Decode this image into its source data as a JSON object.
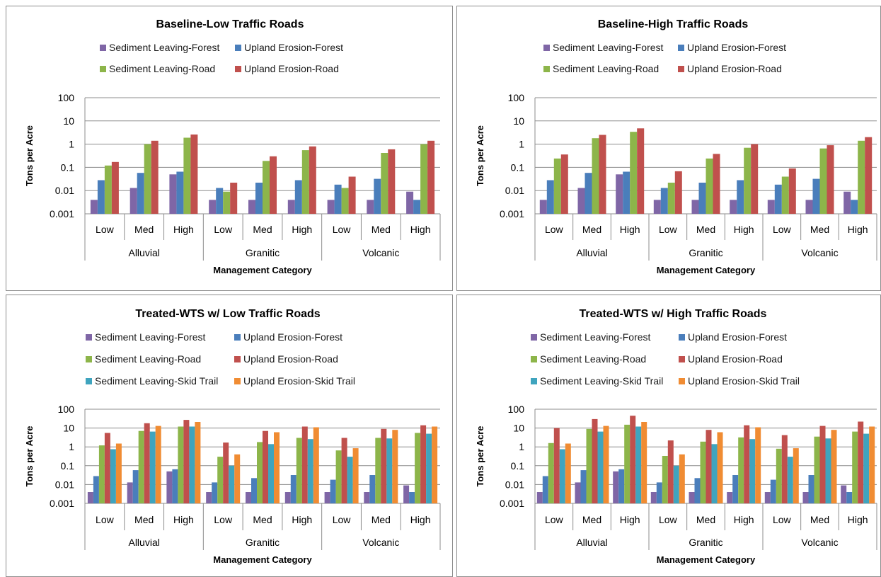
{
  "colors": {
    "Sediment Leaving-Forest": "#7f66a6",
    "Upland Erosion-Forest": "#4a7ebb",
    "Sediment Leaving-Road": "#8db54a",
    "Upland Erosion-Road": "#c0504d",
    "Sediment Leaving-Skid Trail": "#3fa4be",
    "Upland Erosion-Skid Trail": "#f08c33"
  },
  "chart_data": [
    {
      "type": "bar",
      "title": "Baseline-Low Traffic Roads",
      "xlabel": "Management Category",
      "ylabel": "Tons per Acre",
      "yscale": "log",
      "ylim": [
        0.001,
        100
      ],
      "yticks": [
        "100",
        "10",
        "1",
        "0.1",
        "0.01",
        "0.001"
      ],
      "groups": [
        "Alluvial",
        "Granitic",
        "Volcanic"
      ],
      "categories": [
        "Low",
        "Med",
        "High",
        "Low",
        "Med",
        "High",
        "Low",
        "Med",
        "High"
      ],
      "legend": "top",
      "series": [
        {
          "name": "Sediment Leaving-Forest",
          "values": [
            0.004,
            0.013,
            0.05,
            0.004,
            0.004,
            0.004,
            0.004,
            0.004,
            0.009
          ]
        },
        {
          "name": "Upland Erosion-Forest",
          "values": [
            0.028,
            0.058,
            0.065,
            0.013,
            0.022,
            0.028,
            0.018,
            0.032,
            0.004
          ]
        },
        {
          "name": "Sediment Leaving-Road",
          "values": [
            0.12,
            1.0,
            1.9,
            0.009,
            0.19,
            0.55,
            0.013,
            0.42,
            1.0
          ]
        },
        {
          "name": "Upland Erosion-Road",
          "values": [
            0.17,
            1.4,
            2.6,
            0.022,
            0.3,
            0.8,
            0.04,
            0.6,
            1.4
          ]
        }
      ]
    },
    {
      "type": "bar",
      "title": "Baseline-High Traffic Roads",
      "xlabel": "Management Category",
      "ylabel": "Tons per Acre",
      "yscale": "log",
      "ylim": [
        0.001,
        100
      ],
      "yticks": [
        "100",
        "10",
        "1",
        "0.1",
        "0.01",
        "0.001"
      ],
      "groups": [
        "Alluvial",
        "Granitic",
        "Volcanic"
      ],
      "categories": [
        "Low",
        "Med",
        "High",
        "Low",
        "Med",
        "High",
        "Low",
        "Med",
        "High"
      ],
      "legend": "top",
      "series": [
        {
          "name": "Sediment Leaving-Forest",
          "values": [
            0.004,
            0.013,
            0.05,
            0.004,
            0.004,
            0.004,
            0.004,
            0.004,
            0.009
          ]
        },
        {
          "name": "Upland Erosion-Forest",
          "values": [
            0.028,
            0.058,
            0.065,
            0.013,
            0.022,
            0.028,
            0.018,
            0.032,
            0.004
          ]
        },
        {
          "name": "Sediment Leaving-Road",
          "values": [
            0.24,
            1.8,
            3.4,
            0.022,
            0.24,
            0.7,
            0.04,
            0.65,
            1.4
          ]
        },
        {
          "name": "Upland Erosion-Road",
          "values": [
            0.36,
            2.5,
            4.8,
            0.068,
            0.38,
            1.0,
            0.09,
            0.9,
            2.0
          ]
        }
      ]
    },
    {
      "type": "bar",
      "title": "Treated-WTS w/ Low Traffic Roads",
      "xlabel": "Management Category",
      "ylabel": "Tons per Acre",
      "yscale": "log",
      "ylim": [
        0.001,
        100
      ],
      "yticks": [
        "100",
        "10",
        "1",
        "0.1",
        "0.01",
        "0.001"
      ],
      "groups": [
        "Alluvial",
        "Granitic",
        "Volcanic"
      ],
      "categories": [
        "Low",
        "Med",
        "High",
        "Low",
        "Med",
        "High",
        "Low",
        "Med",
        "High"
      ],
      "legend": "top",
      "series": [
        {
          "name": "Sediment Leaving-Forest",
          "values": [
            0.004,
            0.013,
            0.05,
            0.004,
            0.004,
            0.004,
            0.004,
            0.004,
            0.009
          ]
        },
        {
          "name": "Upland Erosion-Forest",
          "values": [
            0.028,
            0.058,
            0.065,
            0.013,
            0.022,
            0.032,
            0.018,
            0.032,
            0.004
          ]
        },
        {
          "name": "Sediment Leaving-Road",
          "values": [
            1.2,
            7,
            12,
            0.3,
            1.8,
            3,
            0.65,
            3,
            5.5
          ]
        },
        {
          "name": "Upland Erosion-Road",
          "values": [
            5.5,
            18,
            27,
            1.7,
            7,
            12,
            3,
            9,
            14
          ]
        },
        {
          "name": "Sediment Leaving-Skid Trail",
          "values": [
            0.75,
            6.5,
            12,
            0.1,
            1.4,
            2.6,
            0.3,
            2.8,
            5
          ]
        },
        {
          "name": "Upland Erosion-Skid Trail",
          "values": [
            1.5,
            13,
            21,
            0.4,
            6,
            11,
            0.85,
            8,
            12
          ]
        }
      ]
    },
    {
      "type": "bar",
      "title": "Treated-WTS w/ High Traffic Roads",
      "xlabel": "Management Category",
      "ylabel": "Tons per Acre",
      "yscale": "log",
      "ylim": [
        0.001,
        100
      ],
      "yticks": [
        "100",
        "10",
        "1",
        "0.1",
        "0.01",
        "0.001"
      ],
      "groups": [
        "Alluvial",
        "Granitic",
        "Volcanic"
      ],
      "categories": [
        "Low",
        "Med",
        "High",
        "Low",
        "Med",
        "High",
        "Low",
        "Med",
        "High"
      ],
      "legend": "top",
      "series": [
        {
          "name": "Sediment Leaving-Forest",
          "values": [
            0.004,
            0.013,
            0.05,
            0.004,
            0.004,
            0.004,
            0.004,
            0.004,
            0.009
          ]
        },
        {
          "name": "Upland Erosion-Forest",
          "values": [
            0.028,
            0.058,
            0.065,
            0.013,
            0.022,
            0.032,
            0.018,
            0.032,
            0.004
          ]
        },
        {
          "name": "Sediment Leaving-Road",
          "values": [
            1.6,
            9,
            15,
            0.33,
            1.9,
            3.2,
            0.8,
            3.5,
            6.5
          ]
        },
        {
          "name": "Upland Erosion-Road",
          "values": [
            10,
            30,
            45,
            2.2,
            8,
            14,
            4.2,
            13,
            22
          ]
        },
        {
          "name": "Sediment Leaving-Skid Trail",
          "values": [
            0.75,
            6.5,
            12,
            0.1,
            1.4,
            2.6,
            0.3,
            2.8,
            5
          ]
        },
        {
          "name": "Upland Erosion-Skid Trail",
          "values": [
            1.5,
            13,
            21,
            0.4,
            6,
            11,
            0.85,
            8,
            12
          ]
        }
      ]
    }
  ]
}
